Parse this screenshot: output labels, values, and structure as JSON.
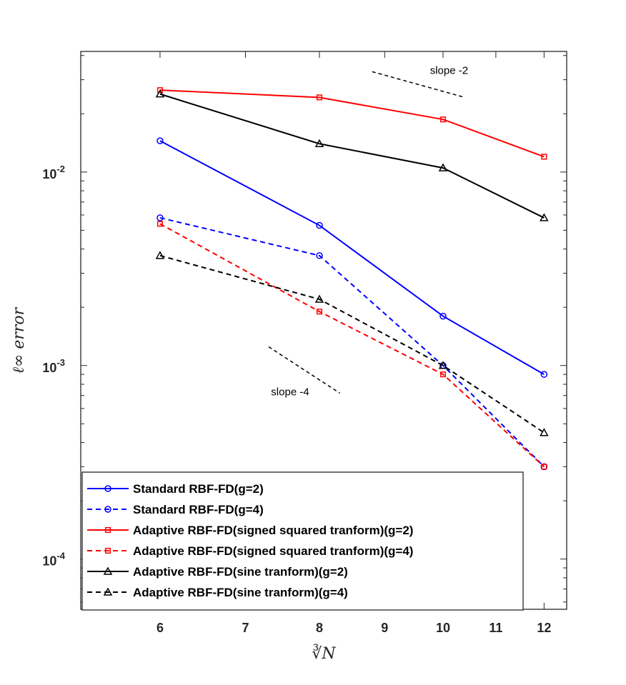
{
  "chart_data": {
    "type": "line",
    "title": "",
    "xlabel": "∛N",
    "ylabel": "ℓ∞ error",
    "xscale": "log",
    "yscale": "log",
    "xlim": [
      5.2,
      12.5
    ],
    "ylim": [
      5.5e-05,
      0.042
    ],
    "xticks": [
      6,
      7,
      8,
      9,
      10,
      11,
      12
    ],
    "xtick_labels": [
      "6",
      "7",
      "8",
      "9",
      "10",
      "11",
      "12"
    ],
    "yticks": [
      0.0001,
      0.001,
      0.01
    ],
    "ytick_labels": [
      {
        "base": "10",
        "exp": "-4"
      },
      {
        "base": "10",
        "exp": "-3"
      },
      {
        "base": "10",
        "exp": "-2"
      }
    ],
    "x": [
      6,
      8,
      10,
      12
    ],
    "series": [
      {
        "name": "Standard RBF-FD(g=2)",
        "color": "#0000ff",
        "dash": "solid",
        "marker": "circle",
        "values": [
          0.0145,
          0.0053,
          0.0018,
          0.0009
        ]
      },
      {
        "name": "Standard RBF-FD(g=4)",
        "color": "#0000ff",
        "dash": "dashed",
        "marker": "circle",
        "values": [
          0.0058,
          0.0037,
          0.001,
          0.0003
        ]
      },
      {
        "name": "Adaptive RBF-FD(signed squared tranform)(g=2)",
        "color": "#ff0000",
        "dash": "solid",
        "marker": "square",
        "values": [
          0.0265,
          0.0243,
          0.0187,
          0.012
        ]
      },
      {
        "name": "Adaptive RBF-FD(signed squared tranform)(g=4)",
        "color": "#ff0000",
        "dash": "dashed",
        "marker": "square",
        "values": [
          0.0054,
          0.0019,
          0.0009,
          0.0003
        ]
      },
      {
        "name": "Adaptive RBF-FD(sine tranform)(g=2)",
        "color": "#000000",
        "dash": "solid",
        "marker": "triangle",
        "values": [
          0.0253,
          0.014,
          0.0105,
          0.0058
        ]
      },
      {
        "name": "Adaptive RBF-FD(sine tranform)(g=4)",
        "color": "#000000",
        "dash": "dashed",
        "marker": "triangle",
        "values": [
          0.0037,
          0.0022,
          0.001,
          0.00045
        ]
      }
    ],
    "annotations": [
      {
        "label": "slope -2",
        "x": [
          8.8,
          10.4
        ],
        "y": [
          0.033,
          0.0243
        ]
      },
      {
        "label": "slope -4",
        "x": [
          7.3,
          8.3
        ],
        "y": [
          0.00125,
          0.00072
        ]
      }
    ],
    "legend_position": "bottom-left"
  }
}
